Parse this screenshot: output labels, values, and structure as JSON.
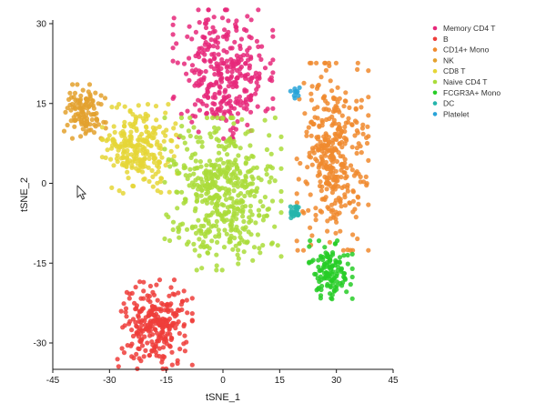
{
  "chart_data": {
    "type": "scatter",
    "title": "",
    "xlabel": "tSNE_1",
    "ylabel": "tSNE_2",
    "xlim": [
      -45,
      45
    ],
    "ylim": [
      -35,
      30
    ],
    "xticks": [
      -45,
      -30,
      -15,
      0,
      15,
      30,
      45
    ],
    "yticks": [
      -30,
      -15,
      0,
      15,
      30
    ],
    "grid": false,
    "legend_position": "top-right",
    "series": [
      {
        "name": "Memory CD4 T",
        "color": "#e6287a",
        "center": [
          0,
          20.5
        ],
        "spread": [
          6,
          5.5
        ],
        "count": 330,
        "notes_points": [
          [
            -3.5,
            28.2
          ],
          [
            -9,
            23.5
          ],
          [
            6,
            22.5
          ],
          [
            -11,
            13
          ],
          [
            2,
            10
          ]
        ]
      },
      {
        "name": "B",
        "color": "#ee3d3a",
        "center": [
          -18,
          -26.5
        ],
        "spread": [
          4.5,
          3.8
        ],
        "count": 260,
        "notes_points": [
          [
            -22,
            -18.5
          ],
          [
            -15,
            -29.5
          ],
          [
            -10,
            -31.5
          ],
          [
            -25.5,
            -25
          ]
        ]
      },
      {
        "name": "CD14+ Mono",
        "color": "#f08a2e",
        "center": [
          29,
          5
        ],
        "spread": [
          4.3,
          8
        ],
        "count": 360,
        "notes_points": [
          [
            32,
            14.5
          ],
          [
            26,
            5
          ],
          [
            29,
            -5
          ],
          [
            37,
            11
          ],
          [
            31,
            -9
          ]
        ]
      },
      {
        "name": "NK",
        "color": "#e3a12e",
        "center": [
          -36.5,
          13.5
        ],
        "spread": [
          2.5,
          2.3
        ],
        "count": 110,
        "notes_points": [
          [
            -37,
            17.5
          ],
          [
            -39,
            14
          ],
          [
            -34,
            11
          ]
        ]
      },
      {
        "name": "CD8 T",
        "color": "#e5d637",
        "center": [
          -22,
          6.5
        ],
        "spread": [
          4.5,
          3.8
        ],
        "count": 240,
        "notes_points": [
          [
            -30,
            9
          ],
          [
            -15,
            10
          ],
          [
            -25,
            1
          ],
          [
            -17,
            3
          ]
        ]
      },
      {
        "name": "Naive CD4 T",
        "color": "#aadc3a",
        "center": [
          0,
          -2
        ],
        "spread": [
          7,
          6.5
        ],
        "count": 480,
        "notes_points": [
          [
            -10,
            -3
          ],
          [
            5,
            12
          ],
          [
            -5,
            -12
          ],
          [
            8,
            5
          ],
          [
            -2,
            -10
          ]
        ]
      },
      {
        "name": "FCGR3A+ Mono",
        "color": "#27cd27",
        "center": [
          28.5,
          -16.5
        ],
        "spread": [
          2.6,
          2.6
        ],
        "count": 120,
        "notes_points": [
          [
            29,
            -13
          ],
          [
            26,
            -20
          ],
          [
            33,
            -13.5
          ]
        ]
      },
      {
        "name": "DC",
        "color": "#25b5ac",
        "center": [
          19,
          -5.5
        ],
        "spread": [
          0.9,
          0.6
        ],
        "count": 22,
        "notes_points": [
          [
            18,
            -6.5
          ],
          [
            20,
            -4.5
          ]
        ]
      },
      {
        "name": "Platelet",
        "color": "#28a3d8",
        "center": [
          19,
          17.3
        ],
        "spread": [
          0.6,
          0.5
        ],
        "count": 9,
        "notes_points": [
          [
            19,
            16
          ]
        ]
      }
    ]
  },
  "overlay": {
    "cursor_icon": "mouse-pointer-icon"
  }
}
